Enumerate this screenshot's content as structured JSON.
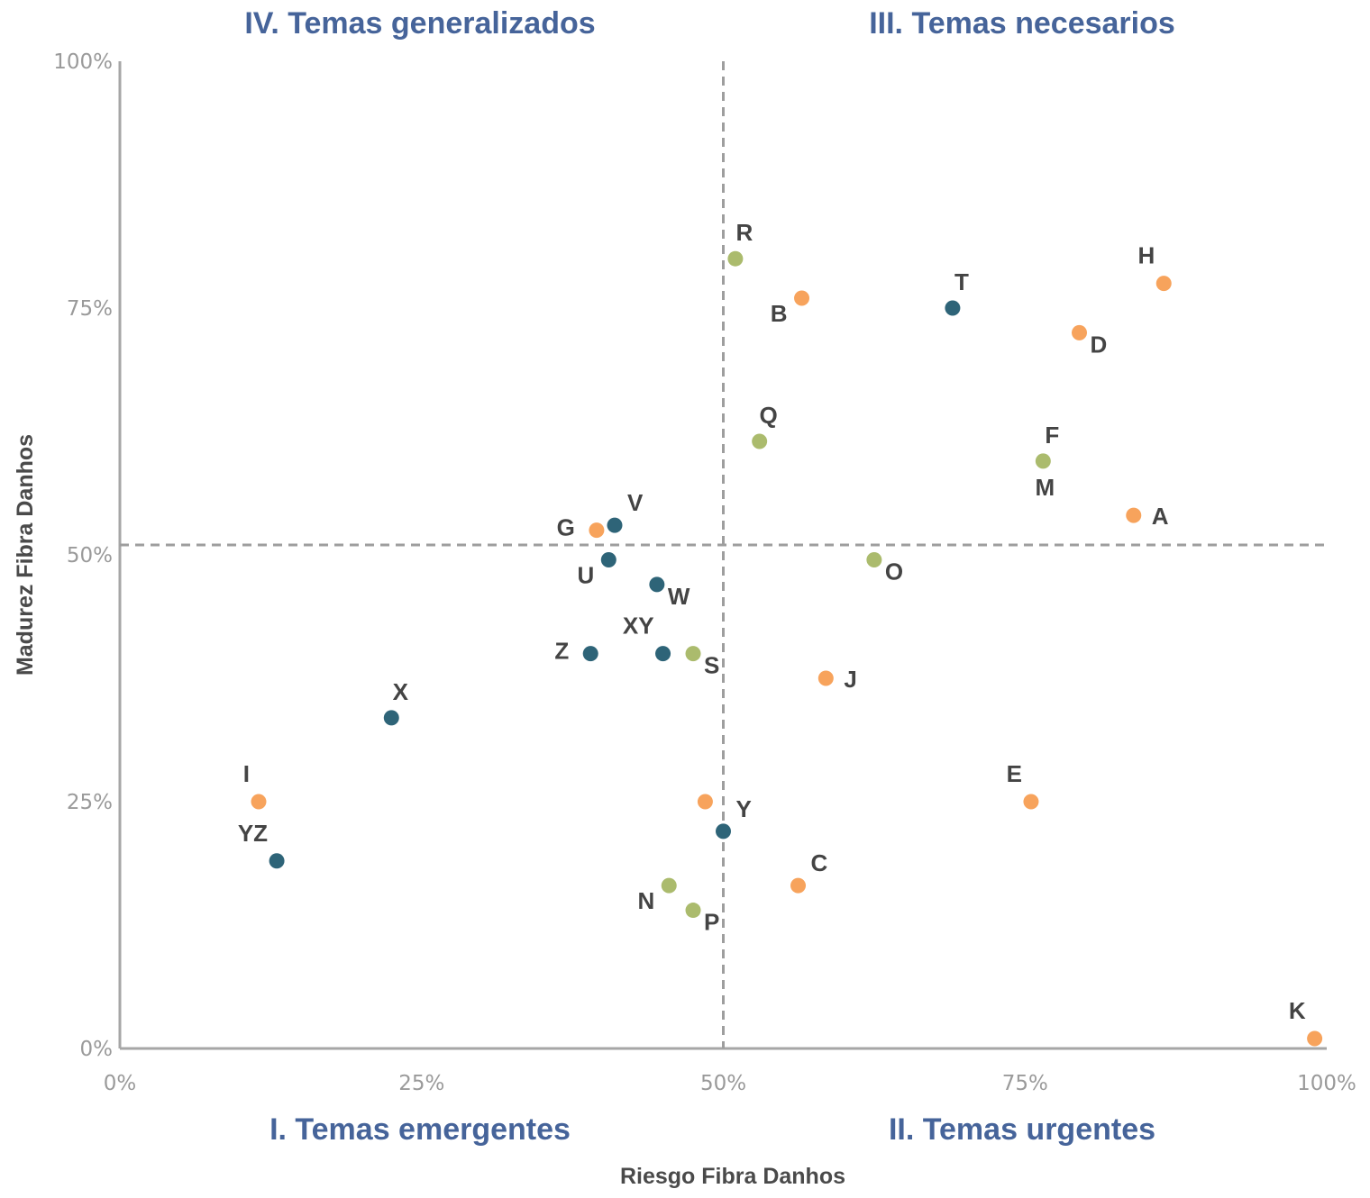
{
  "colors": {
    "orange": "#f7a35c",
    "teal": "#2e6478",
    "olive": "#abbb6d",
    "axis": "#a6a6a6",
    "quadrant_title": "#46649a",
    "label": "#444444"
  },
  "chart_data": {
    "type": "scatter",
    "xlabel": "Riesgo Fibra Danhos",
    "ylabel": "Madurez Fibra Danhos",
    "xlim": [
      0,
      100
    ],
    "ylim": [
      0,
      100
    ],
    "x_ticks": [
      "0%",
      "25%",
      "50%",
      "75%",
      "100%"
    ],
    "y_ticks": [
      "0%",
      "25%",
      "50%",
      "75%",
      "100%"
    ],
    "grid": false,
    "reference_lines": {
      "x": 50,
      "y": 51
    },
    "quadrants": {
      "top_left": "IV. Temas generalizados",
      "top_right": "III. Temas necesarios",
      "bottom_left": "I. Temas emergentes",
      "bottom_right": "II. Temas urgentes"
    },
    "points": [
      {
        "label": "A",
        "x": 84,
        "y": 54,
        "color": "orange",
        "label_pos": "right"
      },
      {
        "label": "B",
        "x": 56.5,
        "y": 76,
        "color": "orange",
        "label_pos": "left-below"
      },
      {
        "label": "C",
        "x": 56.2,
        "y": 16.5,
        "color": "orange",
        "label_pos": "above-right"
      },
      {
        "label": "D",
        "x": 79.5,
        "y": 72.5,
        "color": "orange",
        "label_pos": "below-right"
      },
      {
        "label": "E",
        "x": 75.5,
        "y": 25,
        "color": "orange",
        "label_pos": "above-left"
      },
      {
        "label": "G",
        "x": 39.5,
        "y": 52.5,
        "color": "orange",
        "label_pos": "left"
      },
      {
        "label": "H",
        "x": 86.5,
        "y": 77.5,
        "color": "orange",
        "label_pos": "above-left"
      },
      {
        "label": "I",
        "x": 11.5,
        "y": 25,
        "color": "orange",
        "label_pos": "above-left"
      },
      {
        "label": "J",
        "x": 58.5,
        "y": 37.5,
        "color": "orange",
        "label_pos": "right"
      },
      {
        "label": "K",
        "x": 99,
        "y": 1,
        "color": "orange",
        "label_pos": "above-left"
      },
      {
        "label": "",
        "x": 48.5,
        "y": 25,
        "color": "orange",
        "label_pos": "none"
      },
      {
        "label": "T",
        "x": 69,
        "y": 75,
        "color": "teal",
        "label_pos": "above"
      },
      {
        "label": "V",
        "x": 41,
        "y": 53,
        "color": "teal",
        "label_pos": "above-right"
      },
      {
        "label": "U",
        "x": 40.5,
        "y": 49.5,
        "color": "teal",
        "label_pos": "left-below"
      },
      {
        "label": "W",
        "x": 44.5,
        "y": 47,
        "color": "teal",
        "label_pos": "below-right"
      },
      {
        "label": "XY",
        "x": 45,
        "y": 40,
        "color": "teal",
        "label_pos": "above-left"
      },
      {
        "label": "Z",
        "x": 39,
        "y": 40,
        "color": "teal",
        "label_pos": "left"
      },
      {
        "label": "X",
        "x": 22.5,
        "y": 33.5,
        "color": "teal",
        "label_pos": "above"
      },
      {
        "label": "YZ",
        "x": 13,
        "y": 19,
        "color": "teal",
        "label_pos": "above-left"
      },
      {
        "label": "Y",
        "x": 50,
        "y": 22,
        "color": "teal",
        "label_pos": "above-right"
      },
      {
        "label": "R",
        "x": 51,
        "y": 80,
        "color": "olive",
        "label_pos": "above"
      },
      {
        "label": "Q",
        "x": 53,
        "y": 61.5,
        "color": "olive",
        "label_pos": "above"
      },
      {
        "label": "F",
        "x": 76.5,
        "y": 59.5,
        "color": "olive",
        "label_pos": "above"
      },
      {
        "label": "M",
        "x": 76.5,
        "y": 59.5,
        "color": "olive",
        "label_pos": "below-only"
      },
      {
        "label": "O",
        "x": 62.5,
        "y": 49.5,
        "color": "olive",
        "label_pos": "below-right"
      },
      {
        "label": "S",
        "x": 47.5,
        "y": 40,
        "color": "olive",
        "label_pos": "below-right"
      },
      {
        "label": "N",
        "x": 45.5,
        "y": 16.5,
        "color": "olive",
        "label_pos": "left-below"
      },
      {
        "label": "P",
        "x": 47.5,
        "y": 14,
        "color": "olive",
        "label_pos": "below-right"
      }
    ]
  }
}
